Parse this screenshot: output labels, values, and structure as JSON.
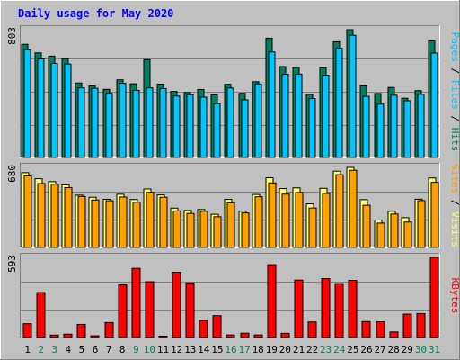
{
  "chart_data": {
    "type": "bar",
    "title": "Daily usage for May 2020",
    "categories": [
      "1",
      "2",
      "3",
      "4",
      "5",
      "6",
      "7",
      "8",
      "9",
      "10",
      "11",
      "12",
      "13",
      "14",
      "15",
      "16",
      "17",
      "18",
      "19",
      "20",
      "21",
      "22",
      "23",
      "24",
      "25",
      "26",
      "27",
      "28",
      "29",
      "30",
      "31"
    ],
    "weekend_days": [
      "2",
      "3",
      "9",
      "10",
      "16",
      "17",
      "23",
      "24",
      "30",
      "31"
    ],
    "panels": [
      {
        "id": "hits",
        "ymax_label": "803",
        "ymax": 803,
        "axis_label_parts": [
          "Pages",
          "Files",
          "Hits"
        ],
        "series": [
          {
            "name": "Hits",
            "color": "#007f5f",
            "values": [
              711,
              657,
              637,
              620,
              468,
              450,
              428,
              488,
              463,
              615,
              461,
              415,
              408,
              427,
              394,
              460,
              403,
              476,
              750,
              571,
              565,
              396,
              564,
              727,
              803,
              450,
              402,
              440,
              372,
              420,
              732
            ]
          },
          {
            "name": "Files",
            "color": "#00c5ff",
            "values": [
              677,
              619,
              591,
              587,
              437,
              435,
              403,
              466,
              422,
              437,
              433,
              386,
              394,
              379,
              338,
              436,
              362,
              462,
              663,
              523,
              524,
              370,
              517,
              686,
              768,
              384,
              335,
              391,
              356,
              397,
              656
            ]
          },
          {
            "name": "Pages",
            "color": "#00c5ff",
            "values": []
          }
        ]
      },
      {
        "id": "sites",
        "ymax_label": "680",
        "ymax": 680,
        "axis_label_parts": [
          "Sites",
          "Visits"
        ],
        "series": [
          {
            "name": "Visits",
            "color": "#ffff60",
            "values": [
              635,
              584,
              559,
              532,
              444,
              426,
              409,
              452,
              407,
              497,
              446,
              334,
              314,
              322,
              282,
              408,
              307,
              450,
              592,
              500,
              506,
              370,
              502,
              648,
              680,
              406,
              233,
              307,
              253,
              410,
              590
            ]
          },
          {
            "name": "Sites",
            "color": "#ff9f00",
            "values": [
              608,
              543,
              537,
              508,
              433,
              403,
              397,
              428,
              384,
              468,
              426,
              310,
              289,
              307,
              261,
              379,
              293,
              430,
              548,
              453,
              467,
              335,
              459,
              618,
              655,
              358,
              207,
              284,
              216,
              398,
              553
            ]
          }
        ]
      },
      {
        "id": "kbytes",
        "ymax_label": "593",
        "ymax": 593,
        "axis_label_parts": [
          "KBytes"
        ],
        "series": [
          {
            "name": "KBytes",
            "color": "#ff0000",
            "values": [
              102,
              333,
              18,
              25,
              97,
              13,
              111,
              389,
              512,
              413,
              10,
              483,
              405,
              127,
              162,
              19,
              32,
              19,
              539,
              31,
              425,
              115,
              436,
              399,
              423,
              118,
              116,
              41,
              173,
              177,
              593
            ]
          }
        ]
      }
    ]
  },
  "colors": {
    "background": "#c0c0c0",
    "gridline": "#808080",
    "title": "#0000ff",
    "weekday_label": "#000000",
    "weekend_label": "#00805c",
    "hits": "#007f5f",
    "files": "#00c5ff",
    "pages": "#00c5ff",
    "visits": "#ffff60",
    "sites": "#ff9f00",
    "kbytes": "#ff0000"
  }
}
